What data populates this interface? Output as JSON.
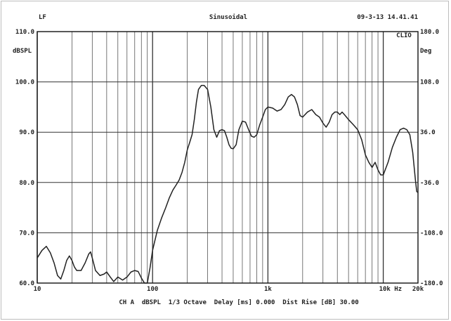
{
  "header": {
    "left": "LF",
    "center": "Sinusoidal",
    "right": "09-3-13 14.41.41"
  },
  "chart_data": {
    "type": "line",
    "title": "Sinusoidal",
    "x_scale": "log",
    "xlim": [
      10,
      20000
    ],
    "ylim_left": [
      60,
      110
    ],
    "ylim_right": [
      -180,
      180
    ],
    "ylabel_left": "dBSPL",
    "ylabel_right": "Deg",
    "corner_label": "CLIO",
    "x_tick_labels": [
      {
        "value": 10,
        "text": "10"
      },
      {
        "value": 100,
        "text": "100"
      },
      {
        "value": 1000,
        "text": "1k"
      },
      {
        "value": 10000,
        "text": "10k Hz"
      },
      {
        "value": 20000,
        "text": "20k"
      }
    ],
    "y_left_ticks": [
      {
        "value": 110,
        "text": "110.0"
      },
      {
        "value": 100,
        "text": "100.0"
      },
      {
        "value": 90,
        "text": "90.0"
      },
      {
        "value": 80,
        "text": "80.0"
      },
      {
        "value": 70,
        "text": "70.0"
      },
      {
        "value": 60,
        "text": "60.0"
      }
    ],
    "y_right_ticks": [
      {
        "value": 180,
        "text": "180.0"
      },
      {
        "value": 108,
        "text": "108.0"
      },
      {
        "value": 36,
        "text": "36.0"
      },
      {
        "value": -36,
        "text": "-36.0"
      },
      {
        "value": -108,
        "text": "-108.0"
      },
      {
        "value": -180,
        "text": "-180.0"
      }
    ],
    "grid": true,
    "series": [
      {
        "color": "#222222",
        "points": [
          [
            10,
            65
          ],
          [
            11,
            66.5
          ],
          [
            12,
            67.3
          ],
          [
            13,
            66
          ],
          [
            14,
            64
          ],
          [
            15,
            61.5
          ],
          [
            16,
            60.8
          ],
          [
            17,
            62.5
          ],
          [
            18,
            64.5
          ],
          [
            19,
            65.4
          ],
          [
            20,
            64.5
          ],
          [
            21,
            63.2
          ],
          [
            22,
            62.5
          ],
          [
            24,
            62.5
          ],
          [
            26,
            64
          ],
          [
            28,
            65.8
          ],
          [
            29,
            66.2
          ],
          [
            30,
            65
          ],
          [
            32,
            62.5
          ],
          [
            35,
            61.5
          ],
          [
            38,
            61.8
          ],
          [
            40,
            62.2
          ],
          [
            43,
            61.2
          ],
          [
            46,
            60.3
          ],
          [
            50,
            61.2
          ],
          [
            55,
            60.6
          ],
          [
            60,
            61.2
          ],
          [
            65,
            62.2
          ],
          [
            70,
            62.5
          ],
          [
            75,
            62.3
          ],
          [
            80,
            61
          ],
          [
            85,
            60
          ],
          [
            90,
            60
          ],
          [
            95,
            63
          ],
          [
            100,
            66.5
          ],
          [
            110,
            70.5
          ],
          [
            120,
            73
          ],
          [
            130,
            75
          ],
          [
            140,
            77
          ],
          [
            150,
            78.5
          ],
          [
            160,
            79.5
          ],
          [
            170,
            80.5
          ],
          [
            180,
            82
          ],
          [
            190,
            84
          ],
          [
            200,
            86.5
          ],
          [
            210,
            88
          ],
          [
            220,
            89.5
          ],
          [
            230,
            92.5
          ],
          [
            240,
            96
          ],
          [
            250,
            98.5
          ],
          [
            265,
            99.3
          ],
          [
            280,
            99.3
          ],
          [
            300,
            98.5
          ],
          [
            320,
            95
          ],
          [
            340,
            90.5
          ],
          [
            360,
            89
          ],
          [
            380,
            90.3
          ],
          [
            400,
            90.5
          ],
          [
            420,
            90.3
          ],
          [
            440,
            89
          ],
          [
            460,
            87.5
          ],
          [
            480,
            86.8
          ],
          [
            500,
            86.7
          ],
          [
            530,
            87.5
          ],
          [
            560,
            90.5
          ],
          [
            600,
            92.2
          ],
          [
            640,
            92
          ],
          [
            680,
            90.5
          ],
          [
            720,
            89.2
          ],
          [
            760,
            89
          ],
          [
            800,
            89.5
          ],
          [
            850,
            91.5
          ],
          [
            900,
            93
          ],
          [
            950,
            94.5
          ],
          [
            1000,
            95
          ],
          [
            1100,
            94.8
          ],
          [
            1200,
            94.2
          ],
          [
            1300,
            94.5
          ],
          [
            1400,
            95.5
          ],
          [
            1500,
            97
          ],
          [
            1600,
            97.5
          ],
          [
            1700,
            97
          ],
          [
            1800,
            95.5
          ],
          [
            1900,
            93.3
          ],
          [
            2000,
            93
          ],
          [
            2200,
            94
          ],
          [
            2400,
            94.5
          ],
          [
            2600,
            93.5
          ],
          [
            2800,
            93
          ],
          [
            3000,
            91.8
          ],
          [
            3200,
            91
          ],
          [
            3400,
            92
          ],
          [
            3600,
            93.5
          ],
          [
            3800,
            94
          ],
          [
            4000,
            94
          ],
          [
            4200,
            93.5
          ],
          [
            4400,
            94
          ],
          [
            4600,
            93.5
          ],
          [
            4800,
            93
          ],
          [
            5000,
            92.5
          ],
          [
            5500,
            91.5
          ],
          [
            6000,
            90.5
          ],
          [
            6500,
            88.5
          ],
          [
            7000,
            85.5
          ],
          [
            7500,
            84
          ],
          [
            8000,
            83
          ],
          [
            8500,
            84
          ],
          [
            9000,
            82.5
          ],
          [
            9500,
            81.5
          ],
          [
            10000,
            81.5
          ],
          [
            11000,
            84
          ],
          [
            12000,
            87
          ],
          [
            13000,
            89
          ],
          [
            14000,
            90.5
          ],
          [
            15000,
            90.8
          ],
          [
            16000,
            90.5
          ],
          [
            17000,
            89.5
          ],
          [
            18000,
            86
          ],
          [
            19000,
            80.5
          ],
          [
            19500,
            78.2
          ],
          [
            20000,
            78
          ]
        ]
      }
    ]
  },
  "footer": {
    "text": "CH A  dBSPL  1/3 Octave  Delay [ms] 0.000  Dist Rise [dB] 30.00"
  }
}
